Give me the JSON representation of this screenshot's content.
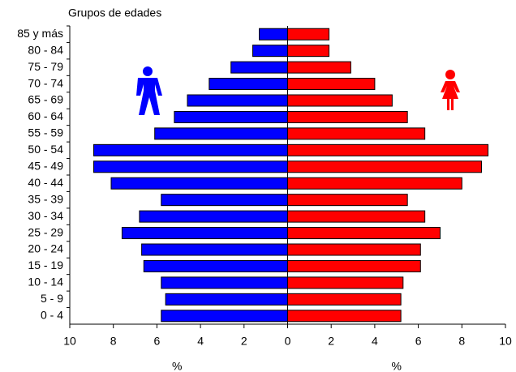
{
  "chart_data": {
    "type": "pyramid",
    "y_label": "Grupos de edades",
    "xlabels": [
      "%",
      "%"
    ],
    "categories": [
      "85 y más",
      "80 - 84",
      "75 - 79",
      "70 - 74",
      "65 - 69",
      "60 - 64",
      "55 - 59",
      "50 - 54",
      "45 - 49",
      "40 - 44",
      "35 - 39",
      "30 - 34",
      "25 - 29",
      "20 - 24",
      "15 - 19",
      "10 - 14",
      "5 - 9",
      "0 - 4"
    ],
    "series": [
      {
        "color": "#0000ff",
        "side": "left",
        "values": [
          1.3,
          1.6,
          2.6,
          3.6,
          4.6,
          5.2,
          6.1,
          8.9,
          8.9,
          8.1,
          5.8,
          6.8,
          7.6,
          6.7,
          6.6,
          5.8,
          5.6,
          5.8
        ]
      },
      {
        "color": "#ff0000",
        "side": "right",
        "values": [
          1.9,
          1.9,
          2.9,
          4.0,
          4.8,
          5.5,
          6.3,
          9.2,
          8.9,
          8.0,
          5.5,
          6.3,
          7.0,
          6.1,
          6.1,
          5.3,
          5.2,
          5.2
        ]
      }
    ],
    "xlim": [
      -10,
      10
    ],
    "xticks": [
      {
        "value": -10,
        "label": "10"
      },
      {
        "value": -8,
        "label": "8"
      },
      {
        "value": -6,
        "label": "6"
      },
      {
        "value": -4,
        "label": "4"
      },
      {
        "value": -2,
        "label": "2"
      },
      0,
      2,
      4,
      6,
      8,
      10
    ]
  }
}
